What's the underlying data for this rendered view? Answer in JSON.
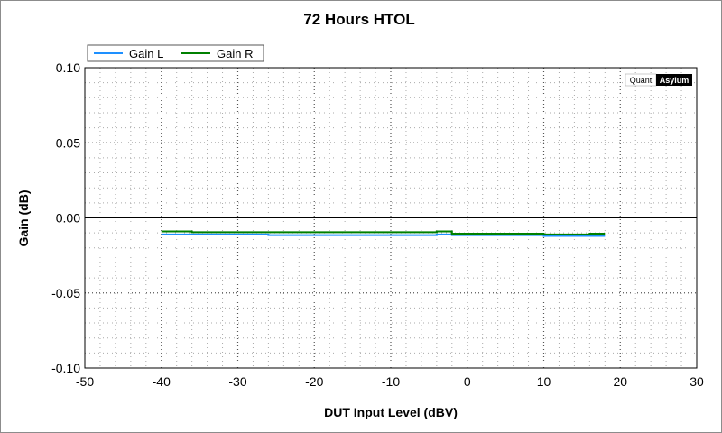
{
  "chart_data": {
    "type": "line",
    "title": "72 Hours HTOL",
    "xlabel": "DUT Input Level (dBV)",
    "ylabel": "Gain (dB)",
    "xlim": [
      -50,
      30
    ],
    "ylim": [
      -0.1,
      0.1
    ],
    "x_ticks": [
      -50,
      -40,
      -30,
      -20,
      -10,
      0,
      10,
      20,
      30
    ],
    "x_tick_labels": [
      "-50",
      "-40",
      "-30",
      "-20",
      "-10",
      "0",
      "10",
      "20",
      "30"
    ],
    "y_ticks": [
      0.1,
      0.05,
      0.0,
      -0.05,
      -0.1
    ],
    "y_tick_labels": [
      "0.10",
      "0.05",
      "0.00",
      "-0.05",
      "-0.10"
    ],
    "grid": true,
    "legend_position": "top-left",
    "series": [
      {
        "name": "Gain L",
        "color": "#1e90ff",
        "x": [
          -40,
          -36,
          -30,
          -26,
          -20,
          -18,
          -12,
          -8,
          -4,
          -2,
          0,
          4,
          8,
          10,
          14,
          16,
          18
        ],
        "y": [
          -0.011,
          -0.011,
          -0.011,
          -0.0115,
          -0.0115,
          -0.0115,
          -0.0115,
          -0.0115,
          -0.011,
          -0.0115,
          -0.0115,
          -0.0115,
          -0.0115,
          -0.012,
          -0.012,
          -0.012,
          -0.012
        ]
      },
      {
        "name": "Gain R",
        "color": "#008000",
        "x": [
          -40,
          -36,
          -30,
          -26,
          -20,
          -18,
          -12,
          -8,
          -4,
          -2,
          0,
          4,
          8,
          10,
          14,
          16,
          18
        ],
        "y": [
          -0.009,
          -0.0095,
          -0.0095,
          -0.0095,
          -0.0095,
          -0.0095,
          -0.0095,
          -0.0095,
          -0.009,
          -0.0105,
          -0.0105,
          -0.0105,
          -0.0105,
          -0.011,
          -0.011,
          -0.0105,
          -0.0105
        ]
      }
    ]
  },
  "watermark": {
    "left": "Quant",
    "right": "Asylum"
  }
}
